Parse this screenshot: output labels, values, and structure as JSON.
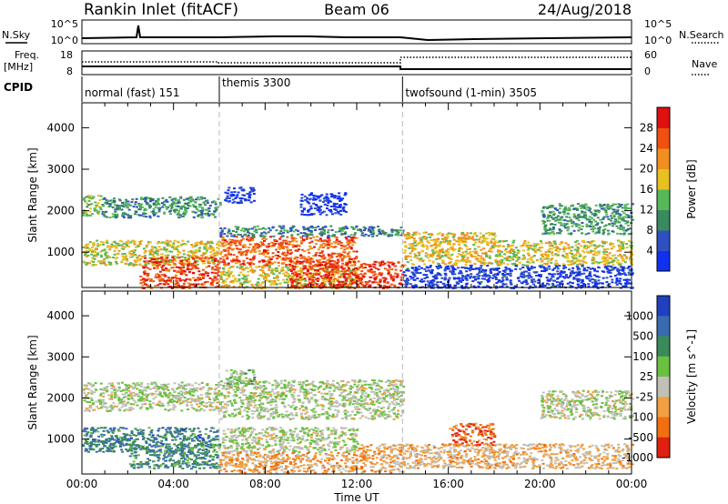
{
  "header": {
    "site": "Rankin Inlet (fitACF)",
    "beam": "Beam 06",
    "date": "24/Aug/2018"
  },
  "left_labels": {
    "nsky": "N.Sky",
    "freq_top": "Freq.",
    "freq_unit": "[MHz]",
    "cpid": "CPID"
  },
  "right_labels": {
    "nsearch": "N.Search",
    "nave": "Nave"
  },
  "noise_axis": {
    "left_ticks": [
      "10^5",
      "10^0"
    ],
    "right_ticks": [
      "10^5",
      "10^0"
    ]
  },
  "freq_axis": {
    "left_ticks": [
      "18",
      "8"
    ],
    "right_ticks": [
      "60",
      "0"
    ]
  },
  "cpid_segments": [
    {
      "label": "normal (fast) 151",
      "start": 0,
      "end": 6
    },
    {
      "label": "themis 3300",
      "start": 6,
      "end": 14
    },
    {
      "label": "twofsound (1-min) 3505",
      "start": 14,
      "end": 24
    }
  ],
  "time_axis": {
    "label": "Time UT",
    "ticks": [
      "00:00",
      "04:00",
      "08:00",
      "12:00",
      "16:00",
      "20:00",
      "00:00"
    ]
  },
  "chart_data": [
    {
      "type": "heatmap",
      "name": "power",
      "ylabel": "Slant Range [km]",
      "ytick_labels": [
        "1000",
        "2000",
        "3000",
        "4000"
      ],
      "yticks": [
        1000,
        2000,
        3000,
        4000
      ],
      "ylim": [
        150,
        4600
      ],
      "xlim": [
        0,
        24
      ],
      "colorbar": {
        "label": "Power [dB]",
        "tick_labels": [
          "4",
          "8",
          "12",
          "16",
          "20",
          "24",
          "28"
        ],
        "ticks": [
          4,
          8,
          12,
          16,
          20,
          24,
          28
        ],
        "range": [
          0,
          32
        ],
        "colors": [
          "#1030f0",
          "#3050c0",
          "#3a8a60",
          "#58b858",
          "#e8c020",
          "#f09020",
          "#f05010",
          "#e01010"
        ]
      },
      "bands": [
        {
          "t0": 0.0,
          "t1": 0.8,
          "r0": 1900,
          "r1": 2400,
          "level": 0.45
        },
        {
          "t0": 0.8,
          "t1": 6.0,
          "r0": 1850,
          "r1": 2350,
          "level": 0.32
        },
        {
          "t0": 0.0,
          "t1": 6.0,
          "r0": 700,
          "r1": 1300,
          "level": 0.55
        },
        {
          "t0": 2.5,
          "t1": 6.0,
          "r0": 150,
          "r1": 900,
          "level": 0.85
        },
        {
          "t0": 6.0,
          "t1": 12.0,
          "r0": 700,
          "r1": 1400,
          "level": 0.8
        },
        {
          "t0": 6.0,
          "t1": 12.0,
          "r0": 150,
          "r1": 700,
          "level": 0.55
        },
        {
          "t0": 9.0,
          "t1": 14.0,
          "r0": 150,
          "r1": 800,
          "level": 0.88
        },
        {
          "t0": 6.0,
          "t1": 14.0,
          "r0": 1400,
          "r1": 1650,
          "level": 0.3
        },
        {
          "t0": 9.5,
          "t1": 11.5,
          "r0": 1900,
          "r1": 2450,
          "level": 0.05
        },
        {
          "t0": 6.2,
          "t1": 7.5,
          "r0": 2200,
          "r1": 2600,
          "level": 0.1
        },
        {
          "t0": 14.0,
          "t1": 18.0,
          "r0": 700,
          "r1": 1500,
          "level": 0.6
        },
        {
          "t0": 18.0,
          "t1": 24.0,
          "r0": 700,
          "r1": 1300,
          "level": 0.55
        },
        {
          "t0": 20.0,
          "t1": 24.0,
          "r0": 1450,
          "r1": 2200,
          "level": 0.35
        },
        {
          "t0": 14.0,
          "t1": 24.0,
          "r0": 150,
          "r1": 700,
          "level": 0.12
        }
      ]
    },
    {
      "type": "heatmap",
      "name": "velocity",
      "ylabel": "Slant Range [km]",
      "ytick_labels": [
        "1000",
        "2000",
        "3000",
        "4000"
      ],
      "yticks": [
        1000,
        2000,
        3000,
        4000
      ],
      "ylim": [
        150,
        4600
      ],
      "xlim": [
        0,
        24
      ],
      "colorbar": {
        "label": "Velocity [m s^-1]",
        "tick_labels": [
          "1000",
          "500",
          "100",
          "25",
          "-25",
          "-100",
          "-500",
          "-1000"
        ],
        "colors": [
          "#2040c0",
          "#3a6ab0",
          "#3a8a5a",
          "#6ac040",
          "#c0c0b8",
          "#f0a040",
          "#f07010",
          "#e02010"
        ]
      },
      "bands": [
        {
          "t0": 0.0,
          "t1": 6.0,
          "r0": 1700,
          "r1": 2400,
          "level": 0.52
        },
        {
          "t0": 6.0,
          "t1": 14.0,
          "r0": 1500,
          "r1": 2450,
          "level": 0.52
        },
        {
          "t0": 6.2,
          "t1": 7.5,
          "r0": 2300,
          "r1": 2700,
          "level": 0.45
        },
        {
          "t0": 0.0,
          "t1": 6.0,
          "r0": 700,
          "r1": 1300,
          "level": 0.25
        },
        {
          "t0": 2.0,
          "t1": 6.0,
          "r0": 300,
          "r1": 900,
          "level": 0.3
        },
        {
          "t0": 6.0,
          "t1": 12.0,
          "r0": 700,
          "r1": 1300,
          "level": 0.52
        },
        {
          "t0": 6.0,
          "t1": 12.0,
          "r0": 200,
          "r1": 700,
          "level": 0.7
        },
        {
          "t0": 12.0,
          "t1": 14.0,
          "r0": 200,
          "r1": 900,
          "level": 0.7
        },
        {
          "t0": 16.0,
          "t1": 18.0,
          "r0": 850,
          "r1": 1400,
          "level": 0.85
        },
        {
          "t0": 14.0,
          "t1": 24.0,
          "r0": 300,
          "r1": 900,
          "level": 0.65
        },
        {
          "t0": 20.0,
          "t1": 24.0,
          "r0": 1500,
          "r1": 2200,
          "level": 0.52
        }
      ]
    }
  ]
}
